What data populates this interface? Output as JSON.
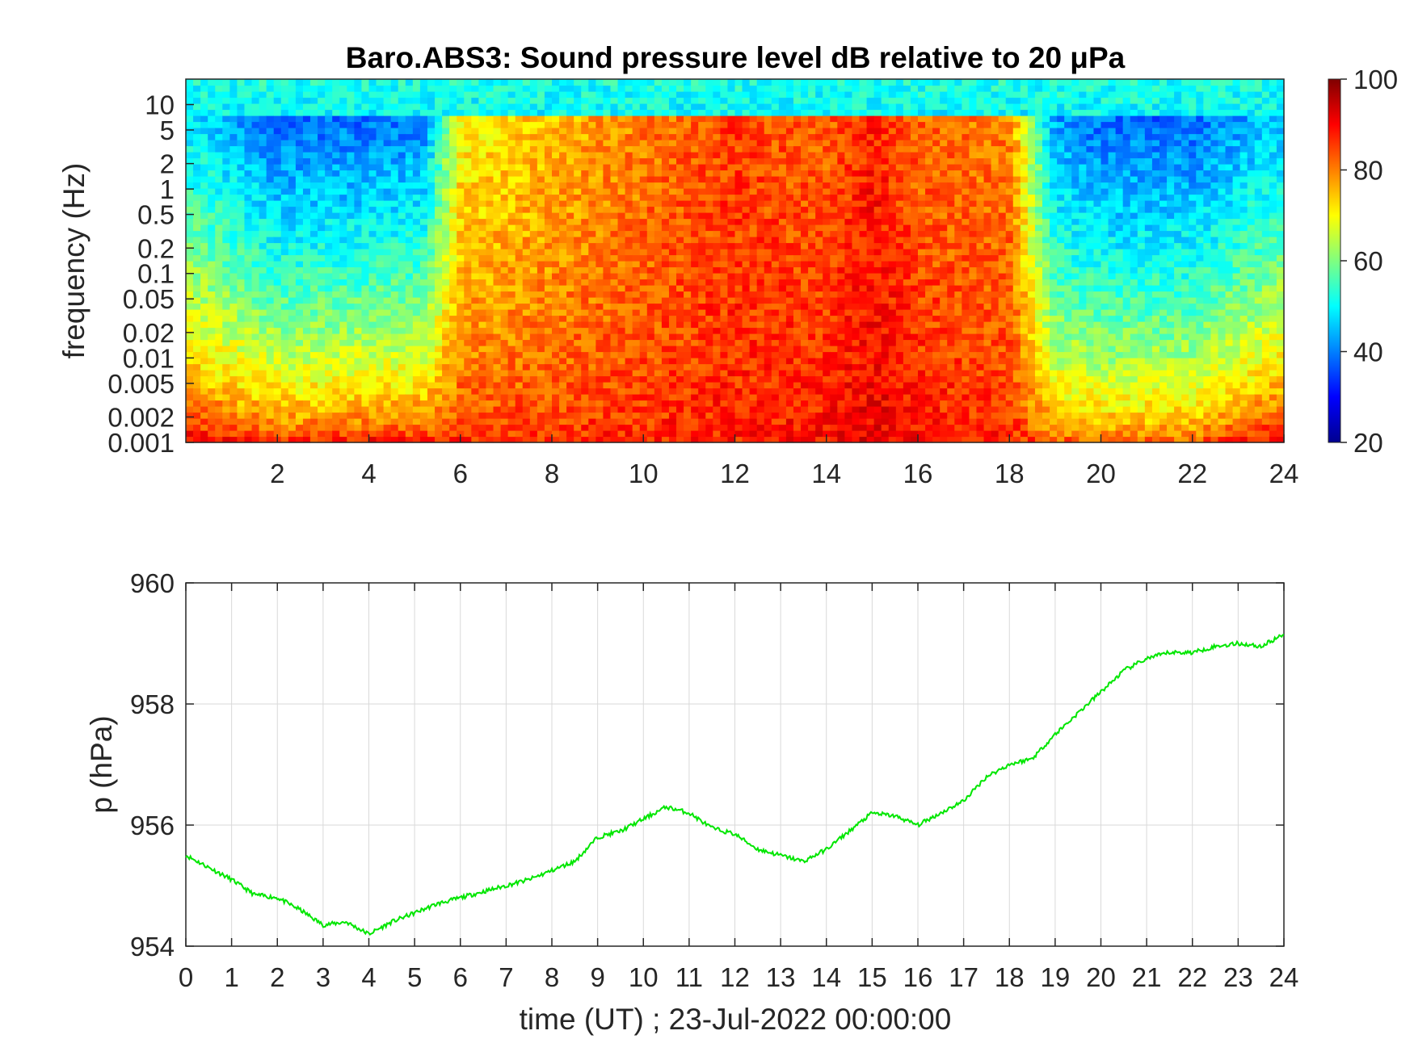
{
  "chart_data": [
    {
      "type": "heatmap",
      "title": "Baro.ABS3: Sound pressure level dB relative to 20 μPa",
      "ylabel": "frequency (Hz)",
      "xlabel": "",
      "xlim": [
        0,
        24
      ],
      "ylim": [
        0.001,
        20
      ],
      "yscale": "log",
      "x_ticks": [
        "2",
        "4",
        "6",
        "8",
        "10",
        "12",
        "14",
        "16",
        "18",
        "20",
        "22",
        "24"
      ],
      "y_ticks": [
        "0.001",
        "0.002",
        "0.005",
        "0.01",
        "0.02",
        "0.05",
        "0.1",
        "0.2",
        "0.5",
        "1",
        "2",
        "5",
        "10"
      ],
      "colormap": "jet",
      "colorbar": {
        "range": [
          20,
          100
        ],
        "ticks": [
          "20",
          "40",
          "60",
          "80",
          "100"
        ],
        "placement": "right"
      },
      "level_description": {
        "hours": [
          0,
          2,
          4,
          5.2,
          6,
          8,
          10,
          12,
          14,
          15,
          16,
          18,
          19,
          20,
          22,
          24
        ],
        "high_freq_level_db": [
          48,
          38,
          38,
          40,
          70,
          75,
          80,
          85,
          82,
          88,
          82,
          80,
          42,
          38,
          38,
          45
        ],
        "low_freq_level_db": [
          95,
          90,
          92,
          92,
          88,
          88,
          88,
          88,
          90,
          92,
          90,
          88,
          86,
          85,
          86,
          95
        ]
      }
    },
    {
      "type": "line",
      "title": "",
      "xlabel": "time (UT) ; 23-Jul-2022 00:00:00",
      "ylabel": "p (hPa)",
      "xlim": [
        0,
        24
      ],
      "ylim": [
        954,
        960
      ],
      "grid": true,
      "x_ticks": [
        "0",
        "1",
        "2",
        "3",
        "4",
        "5",
        "6",
        "7",
        "8",
        "9",
        "10",
        "11",
        "12",
        "13",
        "14",
        "15",
        "16",
        "17",
        "18",
        "19",
        "20",
        "21",
        "22",
        "23",
        "24"
      ],
      "y_ticks": [
        "954",
        "956",
        "958",
        "960"
      ],
      "series": [
        {
          "color": "#00e600",
          "x": [
            0,
            0.5,
            1,
            1.5,
            2,
            2.5,
            3,
            3.5,
            4,
            4.5,
            5,
            5.5,
            6,
            6.5,
            7,
            7.5,
            8,
            8.5,
            9,
            9.5,
            10,
            10.5,
            11,
            11.5,
            12,
            12.5,
            13,
            13.5,
            14,
            14.5,
            15,
            15.5,
            16,
            16.5,
            17,
            17.5,
            18,
            18.5,
            19,
            19.5,
            20,
            20.5,
            21,
            21.5,
            22,
            22.5,
            23,
            23.5,
            24
          ],
          "y": [
            955.5,
            955.3,
            955.1,
            954.85,
            954.8,
            954.6,
            954.35,
            954.4,
            954.2,
            954.4,
            954.55,
            954.7,
            954.8,
            954.9,
            955.0,
            955.1,
            955.25,
            955.4,
            955.8,
            955.9,
            956.1,
            956.3,
            956.2,
            955.95,
            955.85,
            955.6,
            955.5,
            955.4,
            955.6,
            955.9,
            956.2,
            956.15,
            956.0,
            956.2,
            956.4,
            956.8,
            957.0,
            957.1,
            957.5,
            957.85,
            958.2,
            958.55,
            958.75,
            958.85,
            958.85,
            958.95,
            959.0,
            958.95,
            959.15
          ]
        }
      ]
    }
  ]
}
